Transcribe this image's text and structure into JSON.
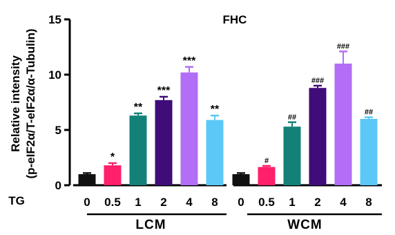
{
  "chart_data": {
    "type": "bar",
    "title": "FHC",
    "ylabel_line1": "Relative intensity",
    "ylabel_line2": "(p-eIF2α/T-eIF2α/α-Tubulin)",
    "ylim": [
      0,
      15
    ],
    "yticks": [
      "0",
      "5",
      "10",
      "15"
    ],
    "row_label": "TG",
    "groups": [
      {
        "name": "LCM",
        "categories": [
          "0",
          "0.5",
          "1",
          "2",
          "4",
          "8"
        ],
        "values": [
          1.0,
          1.8,
          6.3,
          7.7,
          10.2,
          5.9
        ],
        "errors": [
          0.1,
          0.2,
          0.2,
          0.3,
          0.5,
          0.4
        ],
        "annotations": [
          "",
          "*",
          "**",
          "***",
          "***",
          "**"
        ]
      },
      {
        "name": "WCM",
        "categories": [
          "0",
          "0.5",
          "1",
          "2",
          "4",
          "8"
        ],
        "values": [
          1.0,
          1.65,
          5.3,
          8.8,
          11.0,
          6.0
        ],
        "errors": [
          0.1,
          0.1,
          0.4,
          0.2,
          1.1,
          0.15
        ],
        "annotations": [
          "",
          "#",
          "##",
          "###",
          "###",
          "##"
        ]
      }
    ],
    "colors": [
      "#111111",
      "#ff1f6b",
      "#138178",
      "#3f0c79",
      "#b26ef7",
      "#5bc8f7"
    ]
  }
}
